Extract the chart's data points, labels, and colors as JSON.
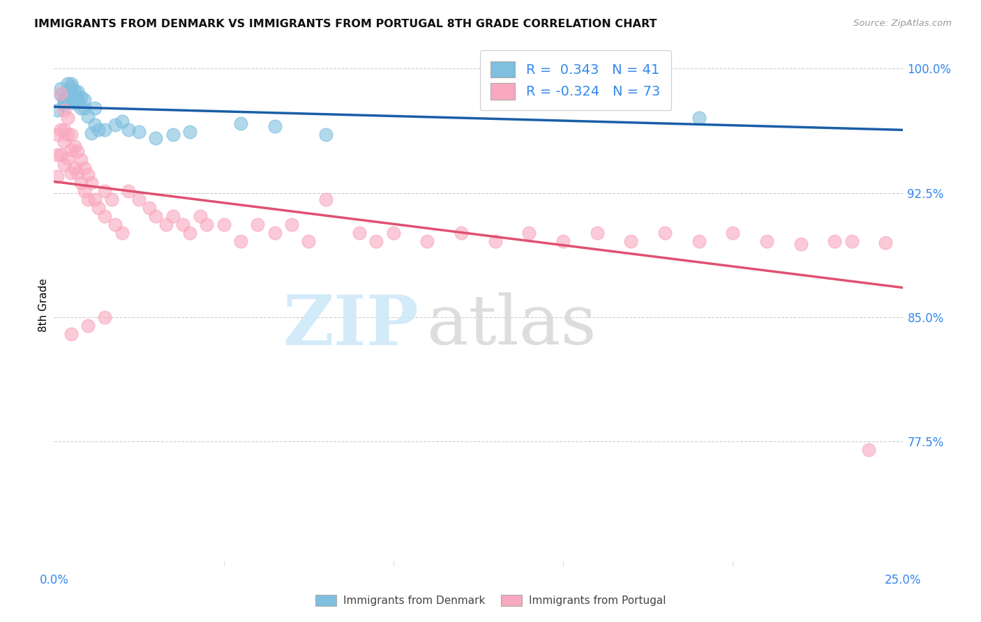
{
  "title": "IMMIGRANTS FROM DENMARK VS IMMIGRANTS FROM PORTUGAL 8TH GRADE CORRELATION CHART",
  "source": "Source: ZipAtlas.com",
  "ylabel": "8th Grade",
  "ylabel_right_labels": [
    "100.0%",
    "92.5%",
    "85.0%",
    "77.5%"
  ],
  "ylabel_right_values": [
    1.0,
    0.925,
    0.85,
    0.775
  ],
  "xlim": [
    0.0,
    0.25
  ],
  "ylim": [
    0.7,
    1.015
  ],
  "legend_r_denmark": "0.343",
  "legend_n_denmark": "41",
  "legend_r_portugal": "-0.324",
  "legend_n_portugal": "73",
  "denmark_color": "#7fbfdf",
  "portugal_color": "#f9a8bf",
  "denmark_line_color": "#1a5ea8",
  "portugal_line_color": "#e05070",
  "background_color": "#ffffff",
  "grid_color": "#cccccc",
  "denmark_x": [
    0.001,
    0.002,
    0.002,
    0.003,
    0.003,
    0.003,
    0.004,
    0.004,
    0.004,
    0.005,
    0.005,
    0.005,
    0.005,
    0.006,
    0.006,
    0.006,
    0.007,
    0.007,
    0.007,
    0.008,
    0.008,
    0.009,
    0.009,
    0.01,
    0.011,
    0.012,
    0.012,
    0.013,
    0.015,
    0.018,
    0.02,
    0.022,
    0.025,
    0.03,
    0.035,
    0.04,
    0.055,
    0.065,
    0.08,
    0.13,
    0.19
  ],
  "denmark_y": [
    0.975,
    0.988,
    0.984,
    0.978,
    0.98,
    0.982,
    0.981,
    0.986,
    0.991,
    0.981,
    0.984,
    0.989,
    0.991,
    0.979,
    0.981,
    0.986,
    0.981,
    0.983,
    0.986,
    0.976,
    0.983,
    0.976,
    0.981,
    0.971,
    0.961,
    0.966,
    0.976,
    0.963,
    0.963,
    0.966,
    0.968,
    0.963,
    0.962,
    0.958,
    0.96,
    0.962,
    0.967,
    0.965,
    0.96,
    0.998,
    0.97
  ],
  "portugal_x": [
    0.001,
    0.001,
    0.001,
    0.002,
    0.002,
    0.002,
    0.003,
    0.003,
    0.003,
    0.003,
    0.004,
    0.004,
    0.004,
    0.005,
    0.005,
    0.005,
    0.006,
    0.006,
    0.007,
    0.007,
    0.008,
    0.008,
    0.009,
    0.009,
    0.01,
    0.01,
    0.011,
    0.012,
    0.013,
    0.015,
    0.015,
    0.017,
    0.018,
    0.02,
    0.022,
    0.025,
    0.028,
    0.03,
    0.033,
    0.035,
    0.038,
    0.04,
    0.043,
    0.045,
    0.05,
    0.055,
    0.06,
    0.065,
    0.07,
    0.075,
    0.08,
    0.09,
    0.095,
    0.1,
    0.11,
    0.12,
    0.13,
    0.14,
    0.15,
    0.16,
    0.17,
    0.18,
    0.19,
    0.2,
    0.21,
    0.22,
    0.23,
    0.235,
    0.24,
    0.245,
    0.005,
    0.01,
    0.015
  ],
  "portugal_y": [
    0.96,
    0.948,
    0.935,
    0.985,
    0.963,
    0.948,
    0.975,
    0.963,
    0.956,
    0.942,
    0.97,
    0.96,
    0.946,
    0.96,
    0.951,
    0.937,
    0.953,
    0.94,
    0.95,
    0.937,
    0.945,
    0.931,
    0.94,
    0.926,
    0.936,
    0.921,
    0.931,
    0.921,
    0.916,
    0.926,
    0.911,
    0.921,
    0.906,
    0.901,
    0.926,
    0.921,
    0.916,
    0.911,
    0.906,
    0.911,
    0.906,
    0.901,
    0.911,
    0.906,
    0.906,
    0.896,
    0.906,
    0.901,
    0.906,
    0.896,
    0.921,
    0.901,
    0.896,
    0.901,
    0.896,
    0.901,
    0.896,
    0.901,
    0.896,
    0.901,
    0.896,
    0.901,
    0.896,
    0.901,
    0.896,
    0.894,
    0.896,
    0.896,
    0.77,
    0.895,
    0.84,
    0.845,
    0.85
  ]
}
